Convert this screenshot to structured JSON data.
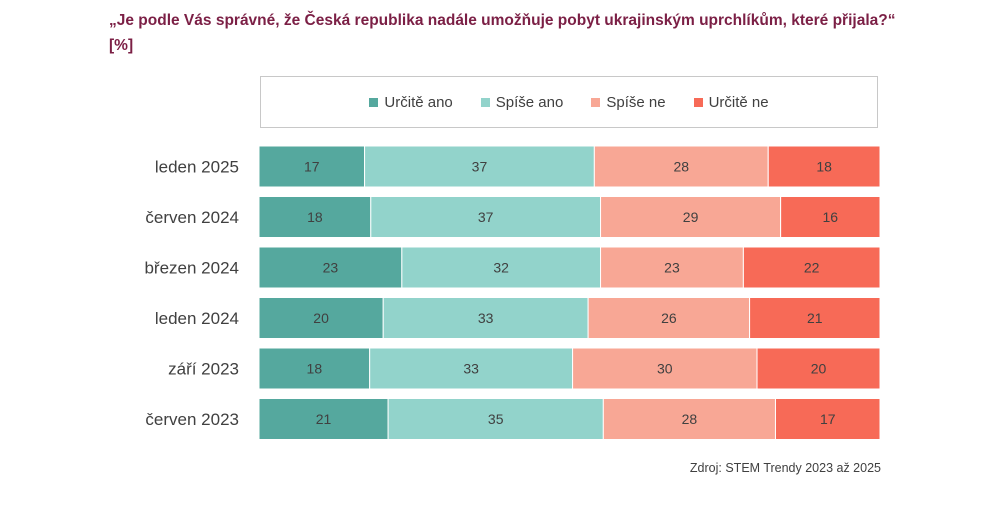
{
  "title": "„Je podle Vás správné, že Česká republika nadále umožňuje pobyt ukrajinským uprchlíkům, které přijala?“ [%]",
  "source": "Zdroj: STEM Trendy 2023 až 2025",
  "colors": {
    "urcite_ano": "#55a89e",
    "spise_ano": "#92d3cb",
    "spise_ne": "#f8a795",
    "urcite_ne": "#f76a57"
  },
  "legend": [
    {
      "label": "Určitě ano",
      "color": "#55a89e"
    },
    {
      "label": "Spíše ano",
      "color": "#92d3cb"
    },
    {
      "label": "Spíše ne",
      "color": "#f8a795"
    },
    {
      "label": "Určitě ne",
      "color": "#f76a57"
    }
  ],
  "chart_data": {
    "type": "bar",
    "orientation": "horizontal",
    "stacked": "percent",
    "categories": [
      "leden 2025",
      "červen 2024",
      "březen 2024",
      "leden 2024",
      "září 2023",
      "červen 2023"
    ],
    "series": [
      {
        "name": "Určitě ano",
        "values": [
          17,
          18,
          23,
          20,
          18,
          21
        ]
      },
      {
        "name": "Spíše ano",
        "values": [
          37,
          37,
          32,
          33,
          33,
          35
        ]
      },
      {
        "name": "Spíše ne",
        "values": [
          28,
          29,
          23,
          26,
          30,
          28
        ]
      },
      {
        "name": "Určitě ne",
        "values": [
          18,
          16,
          22,
          21,
          20,
          17
        ]
      }
    ],
    "legend_position": "top",
    "grid": false
  }
}
